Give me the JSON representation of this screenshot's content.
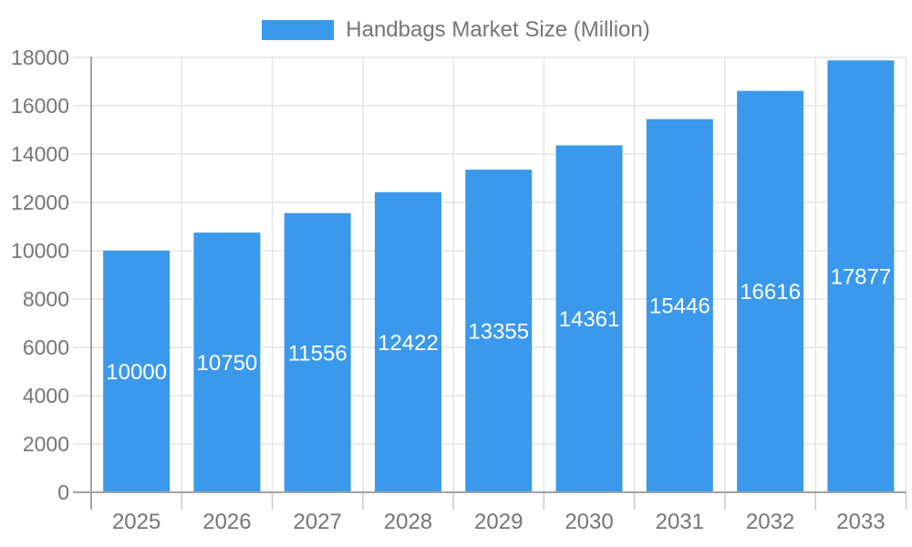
{
  "chart_data": {
    "type": "bar",
    "title": "Handbags Market Size (Million)",
    "series_name": "Handbags Market Size (Million)",
    "categories": [
      "2025",
      "2026",
      "2027",
      "2028",
      "2029",
      "2030",
      "2031",
      "2032",
      "2033"
    ],
    "values": [
      10000,
      10750,
      11556,
      12422,
      13355,
      14361,
      15446,
      16616,
      17877
    ],
    "xlabel": "",
    "ylabel": "",
    "ylim": [
      0,
      18000
    ],
    "ytick_step": 2000,
    "yticks": [
      0,
      2000,
      4000,
      6000,
      8000,
      10000,
      12000,
      14000,
      16000,
      18000
    ],
    "legend_position": "top",
    "grid": true,
    "bar_labels_inside": true,
    "colors": {
      "bar": "#3B99EC",
      "bar_label": "#FFFFFF",
      "axis_text": "#757575",
      "axis_line": "#A3A3A3",
      "gridline": "#E3E3E3",
      "tick": "#CBCBCB",
      "background": "#FFFFFF"
    }
  }
}
